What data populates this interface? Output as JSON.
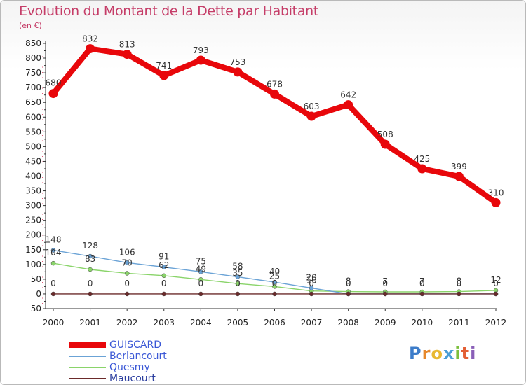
{
  "title": "Evolution du Montant de la Dette par Habitant",
  "unit": "(en €)",
  "logo": {
    "letters": [
      "P",
      "r",
      "o",
      "x",
      "i",
      "t",
      "i"
    ],
    "colors": [
      "#3c7cc9",
      "#e6882c",
      "#e8b830",
      "#4a9ed6",
      "#7bbf3c",
      "#e35f35",
      "#8a5fb8"
    ]
  },
  "chart_data": {
    "type": "line",
    "title": "Evolution du Montant de la Dette par Habitant",
    "ylabel": "(en €)",
    "xlabel": "",
    "x": [
      "2000",
      "2001",
      "2002",
      "2003",
      "2004",
      "2005",
      "2006",
      "2007",
      "2008",
      "2009",
      "2010",
      "2011",
      "2012"
    ],
    "ylim": [
      -50,
      850
    ],
    "yticks": [
      -50,
      0,
      50,
      100,
      150,
      200,
      250,
      300,
      350,
      400,
      450,
      500,
      550,
      600,
      650,
      700,
      750,
      800,
      850
    ],
    "grid": false,
    "legend_position": "bottom-left",
    "series": [
      {
        "name": "GUISCARD",
        "color": "#e8070b",
        "values": [
          680,
          832,
          813,
          741,
          793,
          753,
          678,
          603,
          642,
          508,
          425,
          399,
          310
        ],
        "labels": [
          "680",
          "832",
          "813",
          "741",
          "793",
          "753",
          "678",
          "603",
          "642",
          "508",
          "425",
          "399",
          "310"
        ]
      },
      {
        "name": "Berlancourt",
        "color": "#6ba3d6",
        "values": [
          148,
          128,
          106,
          91,
          75,
          58,
          40,
          20,
          0,
          0,
          0,
          0,
          0
        ],
        "labels": [
          "148",
          "128",
          "106",
          "91",
          "75",
          "58",
          "40",
          "20",
          "0",
          "0",
          "0",
          "0",
          "0"
        ]
      },
      {
        "name": "Quesmy",
        "color": "#8ad46a",
        "values": [
          104,
          83,
          70,
          62,
          49,
          35,
          25,
          10,
          8,
          7,
          7,
          8,
          12
        ],
        "labels": [
          "104",
          "83",
          "70",
          "62",
          "49",
          "35",
          "25",
          "10",
          "8",
          "7",
          "7",
          "8",
          "12"
        ]
      },
      {
        "name": "Maucourt",
        "color": "#6b2a2a",
        "values": [
          0,
          0,
          0,
          0,
          0,
          0,
          0,
          0,
          0,
          0,
          0,
          0,
          0
        ],
        "labels": [
          "0",
          "0",
          "0",
          "0",
          "0",
          "0",
          "0",
          "0",
          "0",
          "0",
          "0",
          "0",
          "0"
        ]
      }
    ]
  }
}
